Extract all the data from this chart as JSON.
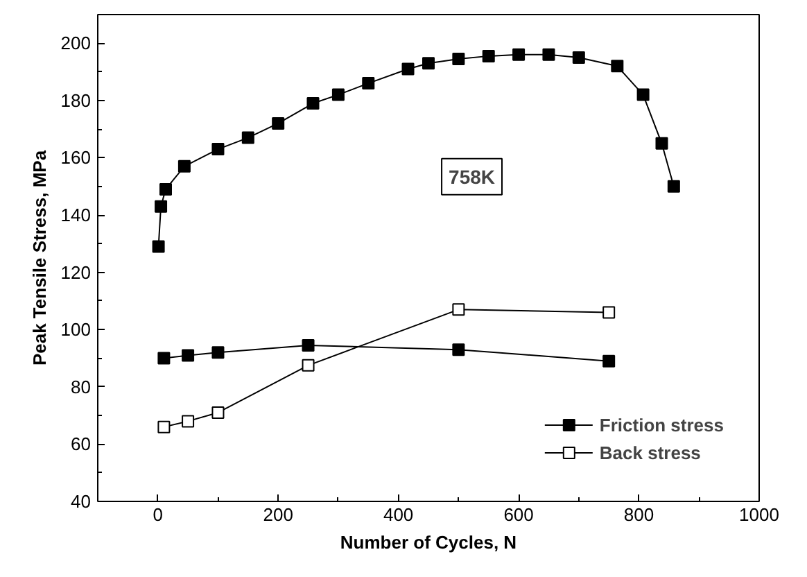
{
  "chart_data": {
    "type": "line",
    "xlabel": "Number of Cycles, N",
    "ylabel": "Peak Tensile Stress, MPa",
    "xlim": [
      -100,
      1000
    ],
    "ylim": [
      40,
      210
    ],
    "xticks": [
      0,
      200,
      400,
      600,
      800,
      1000
    ],
    "yticks": [
      40,
      60,
      80,
      100,
      120,
      140,
      160,
      180,
      200
    ],
    "grid": false,
    "legend": "bottom right",
    "annotations": [
      "758K"
    ],
    "series": [
      {
        "color": "#000000",
        "marker": "square",
        "x": [
          1,
          5,
          13,
          44,
          100,
          150,
          200,
          258,
          300,
          350,
          416,
          450,
          500,
          550,
          600,
          650,
          700,
          764,
          807,
          838,
          858
        ],
        "values": [
          129,
          143,
          149,
          157,
          163,
          167,
          172,
          179,
          182,
          186,
          191,
          193,
          194.5,
          195.5,
          196,
          196,
          195,
          192,
          182,
          165,
          150
        ]
      },
      {
        "name": "Friction stress",
        "color": "#000000",
        "marker": "square",
        "x": [
          10,
          50,
          100,
          250,
          500,
          750
        ],
        "values": [
          90,
          91,
          92,
          94.5,
          93,
          89
        ]
      },
      {
        "name": "Back stress",
        "color": "#ffffff",
        "marker": "square",
        "x": [
          10,
          50,
          100,
          250,
          500,
          750
        ],
        "values": [
          66,
          68,
          71,
          87.5,
          107,
          106
        ]
      }
    ]
  }
}
